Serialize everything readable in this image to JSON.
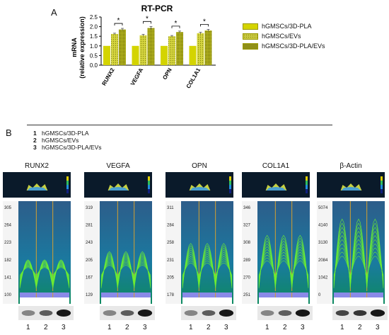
{
  "panel_a": {
    "letter": "A",
    "chart_data": {
      "type": "bar",
      "title": "RT-PCR",
      "ylabel_line1": "mRNA",
      "ylabel_line2": "(relative expression)",
      "categories": [
        "RUNX2",
        "VEGFA",
        "OPN",
        "COL1A1"
      ],
      "yticks": [
        "0.0",
        "0.5",
        "1.0",
        "1.5",
        "2.0",
        "2.5"
      ],
      "ylim": [
        0,
        2.5
      ],
      "series": [
        {
          "name": "hGMSCs/3D-PLA",
          "values": [
            1.0,
            1.0,
            1.0,
            1.0
          ],
          "errors": [
            0,
            0,
            0,
            0
          ],
          "color": "#d4d400",
          "pattern": "solid"
        },
        {
          "name": "hGMSCs/EVs",
          "values": [
            1.62,
            1.55,
            1.5,
            1.66
          ],
          "errors": [
            0.04,
            0.05,
            0.04,
            0.05
          ],
          "color": "#c8c840",
          "pattern": "dots"
        },
        {
          "name": "hGMSCs/3D-PLA/EVs",
          "values": [
            1.85,
            1.93,
            1.72,
            1.8
          ],
          "errors": [
            0.06,
            0.08,
            0.05,
            0.06
          ],
          "color": "#a8a820",
          "pattern": "dense"
        }
      ],
      "significance": [
        "*",
        "*",
        "*",
        "*"
      ],
      "legend_position": "right"
    }
  },
  "panel_b": {
    "letter": "B",
    "key": [
      {
        "num": "1",
        "label": "hGMSCs/3D-PLA"
      },
      {
        "num": "2",
        "label": "hGMSCs/EVs"
      },
      {
        "num": "3",
        "label": "hGMSCs/3D-PLA/EVs"
      }
    ],
    "blots": [
      {
        "label": "RUNX2",
        "ticks": [
          "305",
          "264",
          "223",
          "182",
          "141",
          "100"
        ]
      },
      {
        "label": "VEGFA",
        "ticks": [
          "319",
          "281",
          "243",
          "205",
          "167",
          "129"
        ]
      },
      {
        "label": "OPN",
        "ticks": [
          "311",
          "284",
          "258",
          "231",
          "205",
          "178"
        ]
      },
      {
        "label": "COL1A1",
        "ticks": [
          "346",
          "327",
          "308",
          "289",
          "270",
          "251"
        ]
      },
      {
        "label": "β-Actin",
        "ticks": [
          "5074",
          "4140",
          "3130",
          "2084",
          "1042",
          "0"
        ]
      }
    ],
    "lanes": [
      "1",
      "2",
      "3"
    ]
  }
}
